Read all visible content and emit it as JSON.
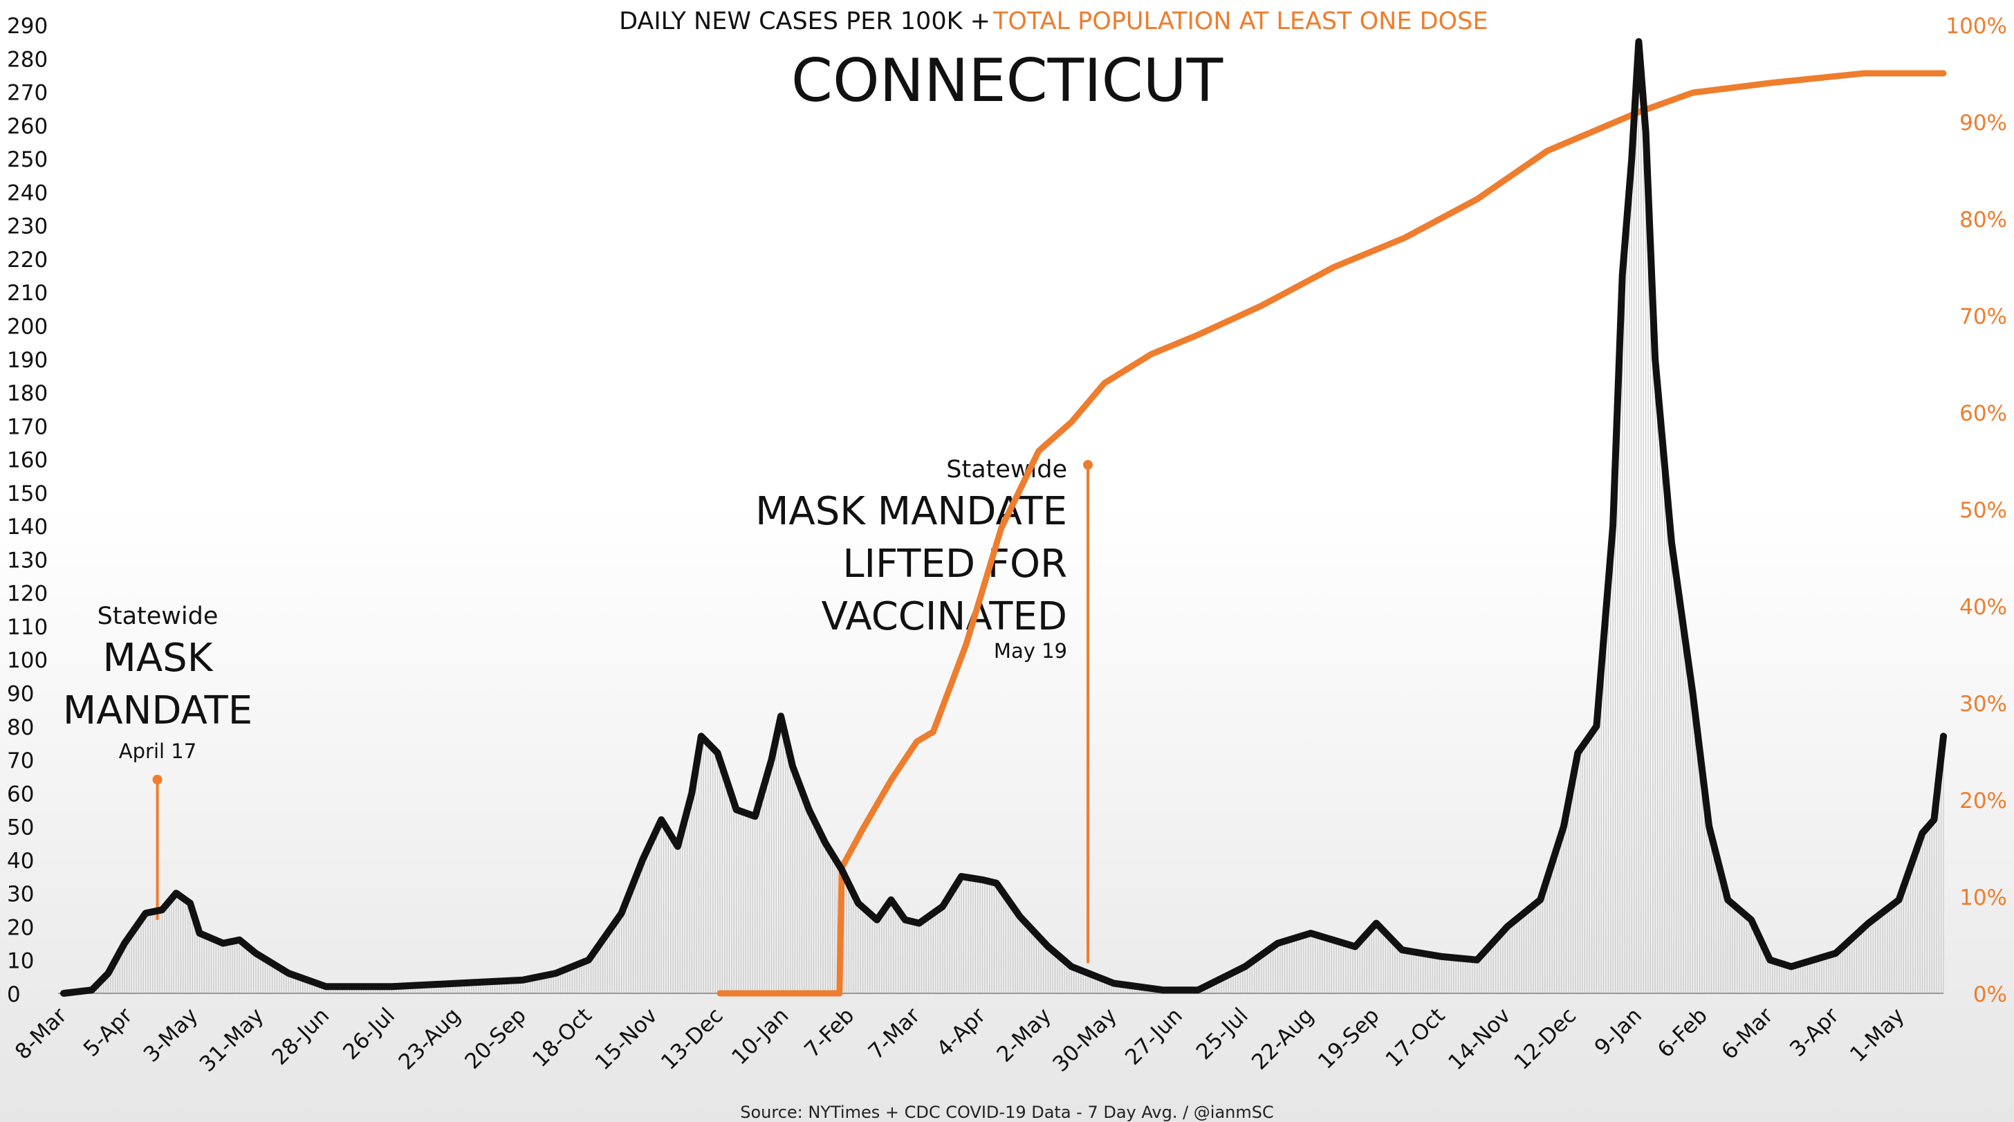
{
  "chart_data": {
    "type": "line",
    "header_left": "DAILY NEW CASES PER 100K + ",
    "header_right": "TOTAL POPULATION AT LEAST ONE DOSE",
    "title": "CONNECTICUT",
    "source": "Source: NYTimes + CDC COVID-19 Data - 7 Day Avg. / @ianmSC",
    "colors": {
      "cases": "#111111",
      "vaccine": "#ee7d2e",
      "annotation": "#ee7d2e"
    },
    "x_axis": {
      "type": "date",
      "range": [
        "2020-03-08",
        "2022-05-19"
      ],
      "tick_labels": [
        "8-Mar",
        "5-Apr",
        "3-May",
        "31-May",
        "28-Jun",
        "26-Jul",
        "23-Aug",
        "20-Sep",
        "18-Oct",
        "15-Nov",
        "13-Dec",
        "10-Jan",
        "7-Feb",
        "7-Mar",
        "4-Apr",
        "2-May",
        "30-May",
        "27-Jun",
        "25-Jul",
        "22-Aug",
        "19-Sep",
        "17-Oct",
        "14-Nov",
        "12-Dec",
        "9-Jan",
        "6-Feb",
        "6-Mar",
        "3-Apr",
        "1-May"
      ],
      "tick_dates": [
        "2020-03-08",
        "2020-04-05",
        "2020-05-03",
        "2020-05-31",
        "2020-06-28",
        "2020-07-26",
        "2020-08-23",
        "2020-09-20",
        "2020-10-18",
        "2020-11-15",
        "2020-12-13",
        "2021-01-10",
        "2021-02-07",
        "2021-03-07",
        "2021-04-04",
        "2021-05-02",
        "2021-05-30",
        "2021-06-27",
        "2021-07-25",
        "2021-08-22",
        "2021-09-19",
        "2021-10-17",
        "2021-11-14",
        "2021-12-12",
        "2022-01-09",
        "2022-02-06",
        "2022-03-06",
        "2022-04-03",
        "2022-05-01"
      ]
    },
    "y_left": {
      "range": [
        0,
        290
      ],
      "ticks": [
        "0",
        "10",
        "20",
        "30",
        "40",
        "50",
        "60",
        "70",
        "80",
        "90",
        "100",
        "110",
        "120",
        "130",
        "140",
        "150",
        "160",
        "170",
        "180",
        "190",
        "200",
        "210",
        "220",
        "230",
        "240",
        "250",
        "260",
        "270",
        "280",
        "290"
      ]
    },
    "y_right": {
      "range": [
        0,
        100
      ],
      "ticks": [
        "0%",
        "10%",
        "20%",
        "30%",
        "40%",
        "50%",
        "60%",
        "70%",
        "80%",
        "90%",
        "100%"
      ]
    },
    "series": [
      {
        "key": "cases",
        "axis": "left",
        "points": [
          [
            "2020-03-08",
            0
          ],
          [
            "2020-03-20",
            1
          ],
          [
            "2020-03-27",
            6
          ],
          [
            "2020-04-03",
            15
          ],
          [
            "2020-04-12",
            24
          ],
          [
            "2020-04-19",
            25
          ],
          [
            "2020-04-25",
            30
          ],
          [
            "2020-05-01",
            27
          ],
          [
            "2020-05-05",
            18
          ],
          [
            "2020-05-15",
            15
          ],
          [
            "2020-05-22",
            16
          ],
          [
            "2020-05-29",
            12
          ],
          [
            "2020-06-12",
            6
          ],
          [
            "2020-06-28",
            2
          ],
          [
            "2020-07-26",
            2
          ],
          [
            "2020-08-23",
            3
          ],
          [
            "2020-09-20",
            4
          ],
          [
            "2020-10-04",
            6
          ],
          [
            "2020-10-18",
            10
          ],
          [
            "2020-11-01",
            24
          ],
          [
            "2020-11-10",
            40
          ],
          [
            "2020-11-18",
            52
          ],
          [
            "2020-11-25",
            44
          ],
          [
            "2020-12-01",
            60
          ],
          [
            "2020-12-05",
            77
          ],
          [
            "2020-12-12",
            72
          ],
          [
            "2020-12-20",
            55
          ],
          [
            "2020-12-28",
            53
          ],
          [
            "2021-01-04",
            70
          ],
          [
            "2021-01-08",
            83
          ],
          [
            "2021-01-13",
            68
          ],
          [
            "2021-01-20",
            55
          ],
          [
            "2021-01-27",
            45
          ],
          [
            "2021-02-03",
            37
          ],
          [
            "2021-02-10",
            27
          ],
          [
            "2021-02-18",
            22
          ],
          [
            "2021-02-24",
            28
          ],
          [
            "2021-03-02",
            22
          ],
          [
            "2021-03-08",
            21
          ],
          [
            "2021-03-18",
            26
          ],
          [
            "2021-03-26",
            35
          ],
          [
            "2021-04-04",
            34
          ],
          [
            "2021-04-10",
            33
          ],
          [
            "2021-04-20",
            23
          ],
          [
            "2021-05-02",
            14
          ],
          [
            "2021-05-12",
            8
          ],
          [
            "2021-05-30",
            3
          ],
          [
            "2021-06-20",
            1
          ],
          [
            "2021-07-05",
            1
          ],
          [
            "2021-07-25",
            8
          ],
          [
            "2021-08-08",
            15
          ],
          [
            "2021-08-22",
            18
          ],
          [
            "2021-09-10",
            14
          ],
          [
            "2021-09-19",
            21
          ],
          [
            "2021-09-30",
            13
          ],
          [
            "2021-10-17",
            11
          ],
          [
            "2021-11-01",
            10
          ],
          [
            "2021-11-14",
            20
          ],
          [
            "2021-11-28",
            28
          ],
          [
            "2021-12-08",
            50
          ],
          [
            "2021-12-14",
            72
          ],
          [
            "2021-12-22",
            80
          ],
          [
            "2021-12-29",
            140
          ],
          [
            "2022-01-02",
            215
          ],
          [
            "2022-01-06",
            250
          ],
          [
            "2022-01-09",
            285
          ],
          [
            "2022-01-12",
            258
          ],
          [
            "2022-01-16",
            190
          ],
          [
            "2022-01-23",
            135
          ],
          [
            "2022-02-01",
            90
          ],
          [
            "2022-02-08",
            50
          ],
          [
            "2022-02-16",
            28
          ],
          [
            "2022-02-26",
            22
          ],
          [
            "2022-03-06",
            10
          ],
          [
            "2022-03-15",
            8
          ],
          [
            "2022-04-03",
            12
          ],
          [
            "2022-04-17",
            21
          ],
          [
            "2022-04-30",
            28
          ],
          [
            "2022-05-10",
            48
          ],
          [
            "2022-05-15",
            52
          ],
          [
            "2022-05-19",
            77
          ]
        ]
      },
      {
        "key": "vaccine",
        "axis": "right",
        "points": [
          [
            "2020-12-13",
            0
          ],
          [
            "2021-02-02",
            0
          ],
          [
            "2021-02-03",
            13
          ],
          [
            "2021-02-12",
            17
          ],
          [
            "2021-02-24",
            22
          ],
          [
            "2021-03-07",
            26
          ],
          [
            "2021-03-14",
            27
          ],
          [
            "2021-03-28",
            36
          ],
          [
            "2021-04-12",
            48
          ],
          [
            "2021-04-28",
            56
          ],
          [
            "2021-05-12",
            59
          ],
          [
            "2021-05-26",
            63
          ],
          [
            "2021-06-15",
            66
          ],
          [
            "2021-07-05",
            68
          ],
          [
            "2021-08-01",
            71
          ],
          [
            "2021-09-01",
            75
          ],
          [
            "2021-10-01",
            78
          ],
          [
            "2021-11-01",
            82
          ],
          [
            "2021-12-01",
            87
          ],
          [
            "2022-01-09",
            91
          ],
          [
            "2022-02-01",
            93
          ],
          [
            "2022-03-06",
            94
          ],
          [
            "2022-04-15",
            95
          ],
          [
            "2022-05-19",
            95
          ]
        ]
      }
    ],
    "annotations": [
      {
        "date": "2020-04-17",
        "small": "Statewide",
        "big": [
          "MASK",
          "MANDATE"
        ],
        "date_label": "April 17"
      },
      {
        "date": "2021-05-19",
        "small": "Statewide",
        "big": [
          "MASK MANDATE",
          "LIFTED FOR",
          "VACCINATED"
        ],
        "date_label": "May 19"
      }
    ]
  }
}
